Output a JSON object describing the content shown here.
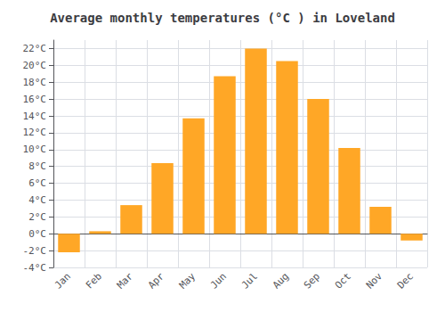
{
  "chart_data": {
    "type": "bar",
    "title": "Average monthly temperatures (°C ) in Loveland",
    "categories": [
      "Jan",
      "Feb",
      "Mar",
      "Apr",
      "May",
      "Jun",
      "Jul",
      "Aug",
      "Sep",
      "Oct",
      "Nov",
      "Dec"
    ],
    "values": [
      -2.2,
      0.3,
      3.4,
      8.4,
      13.7,
      18.7,
      22.0,
      20.5,
      16.0,
      10.2,
      3.2,
      -0.8
    ],
    "color": "#FFA726",
    "ylim": [
      -4,
      23
    ],
    "yticks": [
      {
        "value": -4,
        "label": "-4°C"
      },
      {
        "value": -2,
        "label": "-2°C"
      },
      {
        "value": 0,
        "label": "0°C"
      },
      {
        "value": 2,
        "label": "2°C"
      },
      {
        "value": 4,
        "label": "4°C"
      },
      {
        "value": 6,
        "label": "6°C"
      },
      {
        "value": 8,
        "label": "8°C"
      },
      {
        "value": 10,
        "label": "10°C"
      },
      {
        "value": 12,
        "label": "12°C"
      },
      {
        "value": 14,
        "label": "14°C"
      },
      {
        "value": 16,
        "label": "16°C"
      },
      {
        "value": 18,
        "label": "18°C"
      },
      {
        "value": 20,
        "label": "20°C"
      },
      {
        "value": 22,
        "label": "22°C"
      }
    ],
    "grid": true
  }
}
